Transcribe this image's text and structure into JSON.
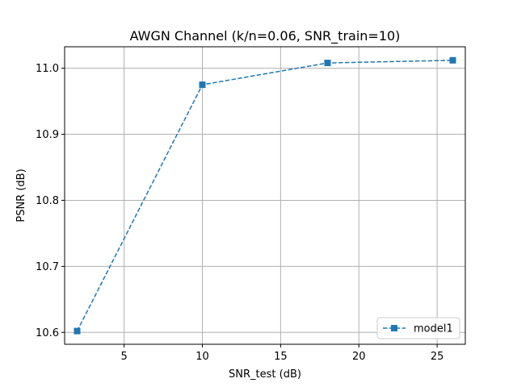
{
  "chart_data": {
    "type": "line",
    "title": "AWGN Channel (k/n=0.06, SNR_train=10)",
    "xlabel": "SNR_test (dB)",
    "ylabel": "PSNR (dB)",
    "xlim": [
      1.2,
      26.8
    ],
    "ylim": [
      10.582,
      11.0325
    ],
    "xticks": [
      5,
      10,
      15,
      20,
      25
    ],
    "xtick_labels": [
      "5",
      "10",
      "15",
      "20",
      "25"
    ],
    "yticks": [
      10.6,
      10.7,
      10.8,
      10.9,
      11.0
    ],
    "ytick_labels": [
      "10.6",
      "10.7",
      "10.8",
      "10.9",
      "11.0"
    ],
    "grid": true,
    "legend_position": "lower-right",
    "series": [
      {
        "name": "model1",
        "color": "#1f77b4",
        "line_style": "dashed",
        "marker": "square",
        "x": [
          2,
          10,
          18,
          26
        ],
        "y": [
          10.602,
          10.975,
          11.008,
          11.012
        ]
      }
    ]
  }
}
